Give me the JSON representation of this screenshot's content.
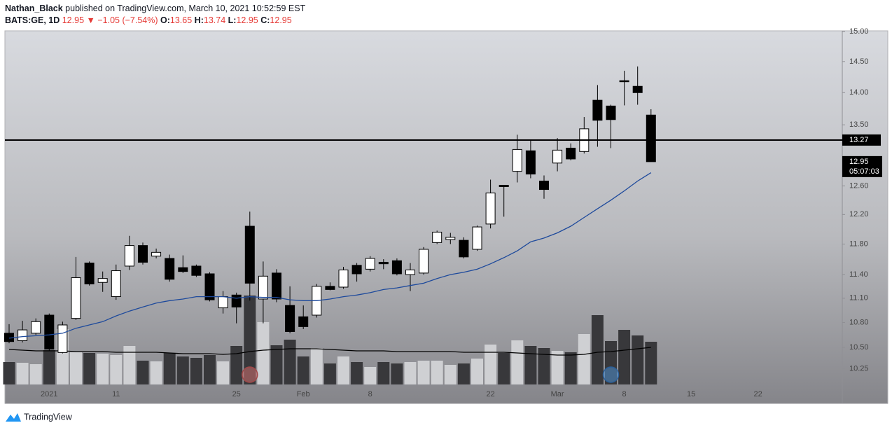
{
  "header": {
    "author": "Nathan_Black",
    "published": "published on TradingView.com, March 10, 2021 10:52:59 EST",
    "symbol": "BATS:GE, 1D",
    "arrow": "▼",
    "change": "−1.05 (−7.54%)",
    "o_label": "O:",
    "h_label": "H:",
    "l_label": "L:",
    "c_label": "C:"
  },
  "footer": "TradingView",
  "chart_data": {
    "type": "candlestick",
    "log_scale": true,
    "ylim": [
      10.07,
      15.0
    ],
    "yticks": [
      {
        "value": 15,
        "label": "15.00"
      },
      {
        "value": 14.5,
        "label": "14.50"
      },
      {
        "value": 14,
        "label": "14.00"
      },
      {
        "value": 13.5,
        "label": "13.50"
      },
      {
        "value": 12.6,
        "label": "12.60"
      },
      {
        "value": 12.2,
        "label": "12.20"
      },
      {
        "value": 11.8,
        "label": "11.80"
      },
      {
        "value": 11.4,
        "label": "11.40"
      },
      {
        "value": 11.1,
        "label": "11.10"
      },
      {
        "value": 10.8,
        "label": "10.80"
      },
      {
        "value": 10.5,
        "label": "10.50"
      },
      {
        "value": 10.25,
        "label": "10.25"
      }
    ],
    "categories": [
      null,
      null,
      null,
      "2021",
      null,
      null,
      null,
      null,
      "11",
      null,
      null,
      null,
      null,
      null,
      null,
      null,
      null,
      "25",
      null,
      null,
      null,
      null,
      "Feb",
      null,
      null,
      null,
      null,
      "8",
      null,
      null,
      null,
      null,
      null,
      null,
      null,
      null,
      "22",
      null,
      null,
      null,
      null,
      "Mar",
      null,
      null,
      null,
      null,
      "8",
      null,
      null,
      null,
      null,
      "15",
      null,
      null,
      null,
      null,
      "22"
    ],
    "open": [
      10.67,
      10.58,
      10.67,
      10.89,
      10.44,
      10.85,
      11.55,
      11.3,
      11.12,
      11.51,
      11.78,
      11.64,
      11.61,
      11.49,
      11.51,
      11.41,
      10.98,
      11.14,
      12.04,
      11.09,
      11.42,
      11.01,
      10.87,
      10.89,
      11.25,
      11.24,
      11.52,
      11.47,
      11.56,
      11.58,
      11.4,
      11.42,
      11.82,
      11.86,
      11.85,
      11.73,
      12.07,
      12.61,
      12.81,
      13.11,
      12.67,
      12.93,
      13.15,
      13.1,
      13.88,
      13.79,
      14.19,
      14.1,
      13.65,
      null,
      null,
      null,
      null,
      null,
      null,
      null,
      null
    ],
    "high": [
      10.78,
      10.82,
      10.85,
      10.91,
      10.81,
      11.63,
      11.57,
      11.44,
      11.53,
      11.91,
      11.82,
      11.74,
      11.66,
      11.65,
      11.53,
      11.43,
      11.19,
      11.17,
      12.24,
      11.57,
      11.47,
      11.25,
      11.01,
      11.28,
      11.3,
      11.5,
      11.55,
      11.64,
      11.6,
      11.61,
      11.55,
      11.76,
      11.98,
      11.95,
      11.89,
      12.05,
      12.69,
      12.61,
      13.35,
      13.27,
      12.75,
      13.3,
      13.22,
      13.62,
      14.12,
      13.81,
      14.35,
      14.42,
      13.74,
      null,
      null,
      null,
      null,
      null,
      null,
      null,
      null
    ],
    "low": [
      10.55,
      10.56,
      10.65,
      10.46,
      10.43,
      10.83,
      11.26,
      11.18,
      11.08,
      11.46,
      11.53,
      11.61,
      11.31,
      11.42,
      11.37,
      11.06,
      10.91,
      10.79,
      11.07,
      10.79,
      11.05,
      10.67,
      10.72,
      10.86,
      11.2,
      11.22,
      11.31,
      11.44,
      11.47,
      11.39,
      11.19,
      11.4,
      11.8,
      11.8,
      11.61,
      11.71,
      12.01,
      12.17,
      12.65,
      12.71,
      12.42,
      12.81,
      12.97,
      13.07,
      13.17,
      13.15,
      13.8,
      13.81,
      12.95,
      null,
      null,
      null,
      null,
      null,
      null,
      null,
      null
    ],
    "close": [
      10.57,
      10.71,
      10.81,
      10.48,
      10.77,
      11.36,
      11.28,
      11.35,
      11.45,
      11.78,
      11.56,
      11.69,
      11.34,
      11.44,
      11.39,
      11.08,
      11.12,
      10.99,
      11.29,
      11.38,
      11.09,
      10.69,
      10.75,
      11.25,
      11.21,
      11.46,
      11.41,
      11.61,
      11.54,
      11.41,
      11.46,
      11.73,
      11.96,
      11.89,
      11.63,
      12.03,
      12.5,
      12.59,
      13.13,
      12.77,
      12.55,
      13.12,
      12.99,
      13.44,
      13.57,
      13.58,
      14.18,
      14.0,
      12.95,
      null,
      null,
      null,
      null,
      null,
      null,
      null,
      null
    ],
    "volume": [
      32,
      31,
      29,
      49,
      79,
      46,
      45,
      44,
      42,
      55,
      34,
      33,
      45,
      40,
      38,
      42,
      33,
      55,
      127,
      89,
      56,
      64,
      40,
      52,
      30,
      40,
      32,
      25,
      32,
      30,
      32,
      34,
      34,
      28,
      30,
      37,
      57,
      45,
      63,
      55,
      52,
      48,
      46,
      72,
      99,
      62,
      78,
      70,
      61,
      null,
      null,
      null,
      null,
      null,
      null,
      null,
      null
    ],
    "ma": [
      10.61,
      10.63,
      10.64,
      10.65,
      10.67,
      10.73,
      10.77,
      10.81,
      10.88,
      10.94,
      10.99,
      11.04,
      11.07,
      11.09,
      11.12,
      11.12,
      11.12,
      11.1,
      11.12,
      11.11,
      11.11,
      11.08,
      11.07,
      11.07,
      11.09,
      11.12,
      11.14,
      11.17,
      11.21,
      11.23,
      11.26,
      11.29,
      11.35,
      11.4,
      11.43,
      11.47,
      11.54,
      11.62,
      11.71,
      11.83,
      11.88,
      11.95,
      12.04,
      12.16,
      12.28,
      12.4,
      12.53,
      12.67,
      12.79,
      null,
      null,
      null,
      null,
      null,
      null,
      null,
      null
    ],
    "volume_ma": [
      50,
      49,
      48,
      48,
      48,
      47,
      47,
      47,
      46,
      46,
      46,
      46,
      45,
      44,
      44,
      44,
      43,
      44,
      47,
      49,
      50,
      51,
      51,
      51,
      50,
      49,
      48,
      48,
      48,
      47,
      47,
      47,
      47,
      47,
      46,
      46,
      46,
      46,
      45,
      44,
      43,
      42,
      42,
      43,
      46,
      47,
      49,
      51,
      53,
      null,
      null,
      null,
      null,
      null,
      null,
      null,
      null
    ],
    "hline": 13.27,
    "countdown": "05:07:03",
    "up_color": "#ffffff",
    "down_color": "#000000",
    "volume_up_color": "#cfd0d3",
    "volume_down_color": "#38383b",
    "ma_color": "#1e4a9c",
    "volume_ma_color": "#000000"
  }
}
